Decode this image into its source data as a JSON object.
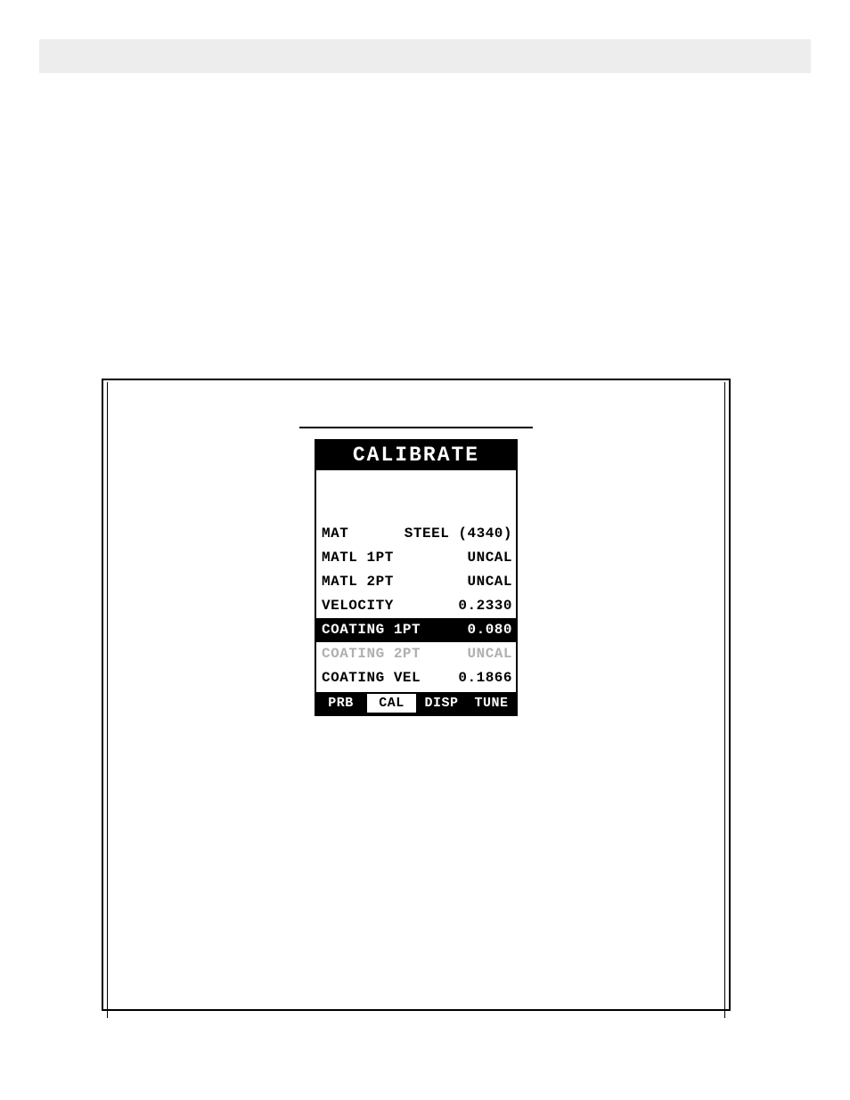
{
  "colors": {
    "background": "#ffffff",
    "foreground": "#000000",
    "topbar": "#ededed",
    "disabled": "#b0b0b0"
  },
  "lcd": {
    "title": "CALIBRATE",
    "rows": [
      {
        "label": "MAT",
        "value": "STEEL (4340)",
        "state": "normal"
      },
      {
        "label": "MATL 1PT",
        "value": "UNCAL",
        "state": "normal"
      },
      {
        "label": "MATL 2PT",
        "value": "UNCAL",
        "state": "normal"
      },
      {
        "label": "VELOCITY",
        "value": "0.2330",
        "state": "normal"
      },
      {
        "label": "COATING 1PT",
        "value": "0.080",
        "state": "selected"
      },
      {
        "label": "COATING 2PT",
        "value": "UNCAL",
        "state": "disabled"
      },
      {
        "label": "COATING VEL",
        "value": "0.1866",
        "state": "normal"
      }
    ],
    "tabs": [
      {
        "label": "PRB",
        "active": false
      },
      {
        "label": "CAL",
        "active": true
      },
      {
        "label": "DISP",
        "active": false
      },
      {
        "label": "TUNE",
        "active": false
      }
    ]
  }
}
